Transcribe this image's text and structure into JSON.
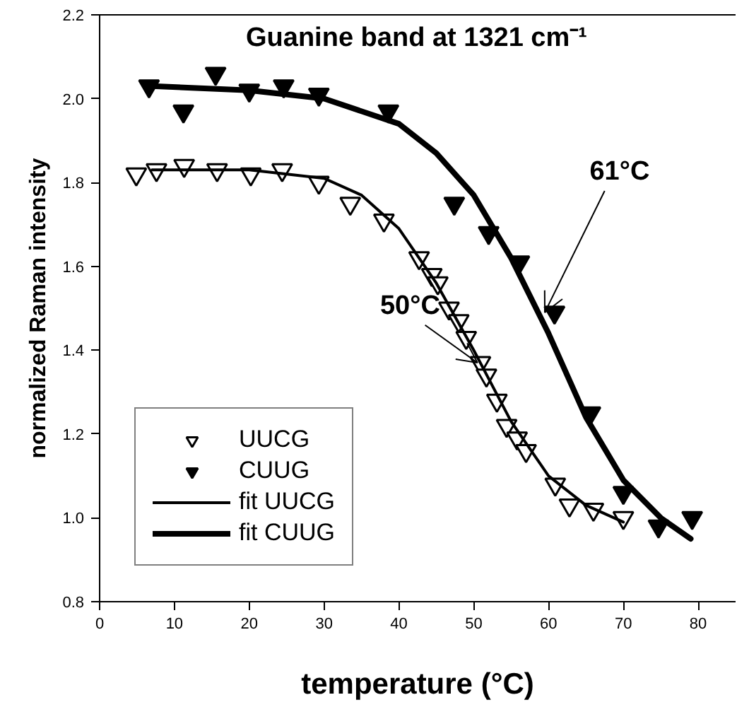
{
  "chart_data": {
    "type": "scatter",
    "title": "Guanine band at 1321 cm⁻¹",
    "xlabel": "temperature (°C)",
    "ylabel": "normalized Raman intensity",
    "xlim": [
      0,
      85
    ],
    "xticks": [
      0,
      10,
      20,
      30,
      40,
      50,
      60,
      70,
      80
    ],
    "ylim": [
      0.8,
      2.2
    ],
    "yticks": [
      0.8,
      {
        "value": 1.0,
        "label": "1.0"
      },
      1.2,
      1.4,
      1.6,
      1.8,
      {
        "value": 2.0,
        "label": "2.0"
      },
      2.2
    ],
    "grid": false,
    "legend": "bottom left",
    "series": [
      {
        "name": "UUCG",
        "marker": "triangle",
        "color": "#ffffff",
        "x": [
          4.9,
          7.6,
          11.3,
          15.7,
          20.2,
          24.4,
          29.3,
          33.5,
          38,
          42.7,
          44.4,
          45.2,
          46.7,
          48,
          49,
          50.9,
          51.7,
          53.1,
          54.4,
          55.8,
          57,
          60.9,
          62.8,
          66,
          70
        ],
        "values": [
          1.82,
          1.83,
          1.84,
          1.83,
          1.82,
          1.83,
          1.8,
          1.75,
          1.71,
          1.62,
          1.58,
          1.56,
          1.5,
          1.47,
          1.43,
          1.37,
          1.34,
          1.28,
          1.22,
          1.19,
          1.16,
          1.08,
          1.03,
          1.02,
          1.0
        ]
      },
      {
        "name": "CUUG",
        "marker": "triangle",
        "color": "#000000",
        "x": [
          6.6,
          11.2,
          15.5,
          20,
          24.6,
          29.3,
          38.6,
          47.4,
          52,
          56.1,
          60.8,
          65.6,
          70,
          74.7,
          79.2
        ],
        "values": [
          2.03,
          1.97,
          2.06,
          2.02,
          2.03,
          2.01,
          1.97,
          1.75,
          1.68,
          1.61,
          1.49,
          1.25,
          1.06,
          0.98,
          1.0
        ]
      },
      {
        "name": "fit UUCG",
        "type": "line",
        "color": "#000000",
        "x": [
          7,
          20,
          30,
          35,
          40,
          45,
          50,
          55,
          60,
          65,
          70
        ],
        "values": [
          1.83,
          1.83,
          1.81,
          1.77,
          1.69,
          1.56,
          1.4,
          1.23,
          1.1,
          1.03,
          0.99
        ]
      },
      {
        "name": "fit CUUG",
        "type": "line",
        "color": "#000000",
        "x": [
          7,
          20,
          30,
          40,
          45,
          50,
          55,
          60,
          65,
          70,
          75,
          79
        ],
        "values": [
          2.03,
          2.02,
          2.0,
          1.94,
          1.87,
          1.77,
          1.62,
          1.44,
          1.24,
          1.09,
          1.0,
          0.95
        ]
      }
    ],
    "annotations": [
      {
        "text": "50°C",
        "x": 50.5,
        "y": 1.37
      },
      {
        "text": "61°C",
        "x": 59.5,
        "y": 1.49
      }
    ]
  }
}
